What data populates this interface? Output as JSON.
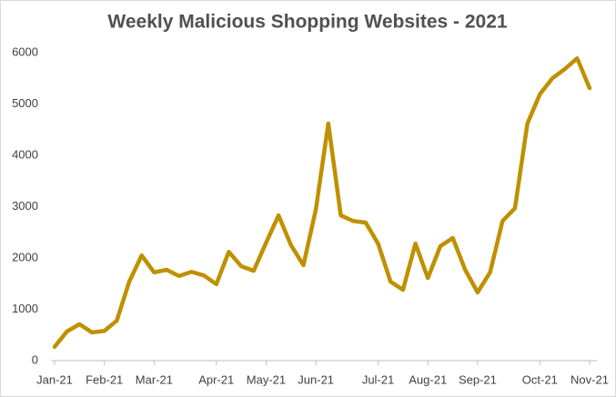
{
  "chart_data": {
    "type": "line",
    "title": "Weekly Malicious Shopping Websites - 2021",
    "categories": [
      "Jan-21",
      null,
      null,
      null,
      "Feb-21",
      null,
      null,
      null,
      "Mar-21",
      null,
      null,
      null,
      null,
      "Apr-21",
      null,
      null,
      null,
      "May-21",
      null,
      null,
      null,
      "Jun-21",
      null,
      null,
      null,
      null,
      "Jul-21",
      null,
      null,
      null,
      "Aug-21",
      null,
      null,
      null,
      "Sep-21",
      null,
      null,
      null,
      null,
      "Oct-21",
      null,
      null,
      null,
      "Nov-21"
    ],
    "series": [
      {
        "name": "Malicious Shopping Websites",
        "color": "#bf9000",
        "values": [
          270,
          570,
          710,
          550,
          580,
          780,
          1540,
          2050,
          1720,
          1770,
          1650,
          1730,
          1660,
          1490,
          2120,
          1840,
          1750,
          2300,
          2830,
          2250,
          1860,
          2950,
          4620,
          2830,
          2720,
          2690,
          2280,
          1540,
          1380,
          2280,
          1610,
          2230,
          2390,
          1770,
          1330,
          1720,
          2720,
          2970,
          4620,
          5190,
          5500,
          5680,
          5890,
          5310
        ]
      }
    ],
    "ylim": [
      0,
      6000
    ],
    "yticks": [
      0,
      1000,
      2000,
      3000,
      4000,
      5000,
      6000
    ],
    "grid": false
  }
}
